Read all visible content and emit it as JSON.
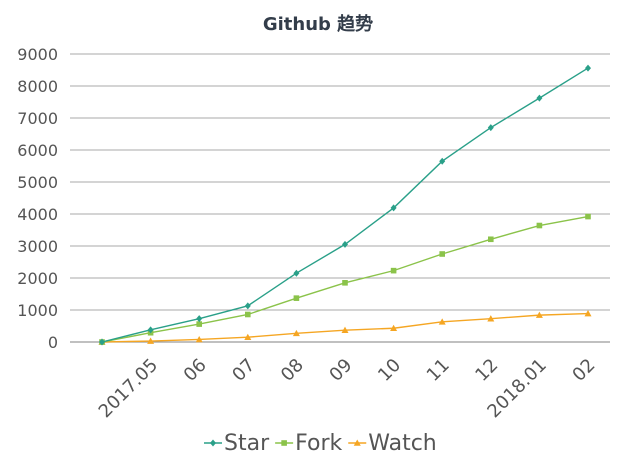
{
  "chart_data": {
    "type": "line",
    "title": "Github 趋势",
    "xlabel": "",
    "ylabel": "",
    "categories": [
      "",
      "2017.05",
      "06",
      "07",
      "08",
      "09",
      "10",
      "11",
      "12",
      "2018.01",
      "02"
    ],
    "ylim": [
      0,
      9000
    ],
    "yticks": [
      0,
      1000,
      2000,
      3000,
      4000,
      5000,
      6000,
      7000,
      8000,
      9000
    ],
    "grid": true,
    "legend": "bottom",
    "series": [
      {
        "name": "Star",
        "color": "#2aa089",
        "marker": "diamond",
        "values": [
          0,
          380,
          730,
          1130,
          2150,
          3050,
          4190,
          5650,
          6700,
          7620,
          8560
        ]
      },
      {
        "name": "Fork",
        "color": "#8bc34a",
        "marker": "square",
        "values": [
          0,
          290,
          560,
          860,
          1370,
          1850,
          2230,
          2750,
          3210,
          3640,
          3920
        ]
      },
      {
        "name": "Watch",
        "color": "#f5a623",
        "marker": "triangle",
        "values": [
          0,
          30,
          80,
          150,
          270,
          370,
          430,
          630,
          730,
          840,
          890
        ]
      }
    ]
  }
}
